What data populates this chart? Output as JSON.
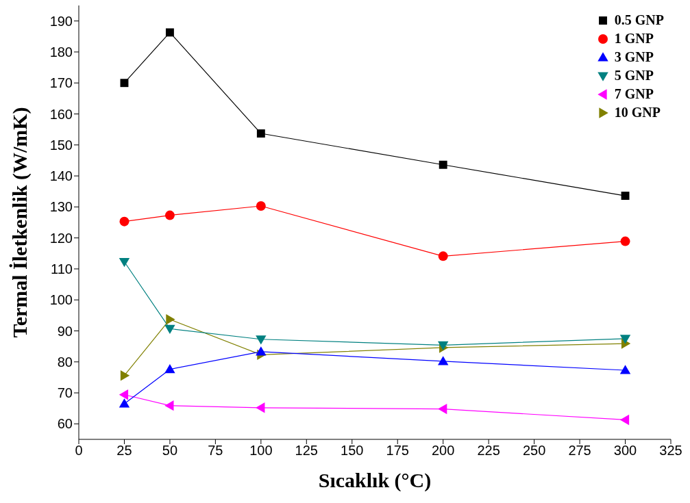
{
  "chart_data": {
    "type": "line",
    "xlabel": "Sıcaklık (°C)",
    "ylabel": "Termal İletkenlik (W/mK)",
    "x": [
      25,
      50,
      100,
      200,
      300
    ],
    "xlim": [
      0,
      325
    ],
    "xticks": [
      0,
      25,
      50,
      75,
      100,
      125,
      150,
      175,
      200,
      225,
      250,
      275,
      300,
      325
    ],
    "ylim": [
      55,
      195
    ],
    "yticks": [
      60,
      70,
      80,
      90,
      100,
      110,
      120,
      130,
      140,
      150,
      160,
      170,
      180,
      190
    ],
    "grid": false,
    "legend": "top right",
    "line_style": "solid",
    "series": [
      {
        "name": "0.5 GNP",
        "color": "#000000",
        "marker": "square",
        "values": [
          170,
          186.3,
          153.7,
          143.6,
          133.6
        ]
      },
      {
        "name": "1 GNP",
        "color": "#ff0000",
        "marker": "circle",
        "values": [
          125.3,
          127.3,
          130.3,
          114.1,
          118.9
        ]
      },
      {
        "name": "3 GNP",
        "color": "#0000ff",
        "marker": "triangle",
        "values": [
          66.5,
          77.6,
          83.3,
          80.2,
          77.3
        ]
      },
      {
        "name": "5 GNP",
        "color": "#008080",
        "marker": "triangle-down",
        "values": [
          112.3,
          90.7,
          87.3,
          85.4,
          87.5
        ]
      },
      {
        "name": "7 GNP",
        "color": "#ff00ff",
        "marker": "triangle-left",
        "values": [
          69.4,
          65.9,
          65.2,
          64.8,
          61.3
        ]
      },
      {
        "name": "10 GNP",
        "color": "#808000",
        "marker": "triangle-right",
        "values": [
          75.6,
          93.7,
          82.3,
          84.6,
          85.9
        ]
      }
    ]
  }
}
